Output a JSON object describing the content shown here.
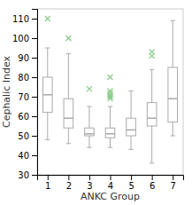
{
  "chart_data": {
    "type": "box",
    "xlabel": "ANKC Group",
    "ylabel": "Cephalic Index",
    "xlim": [
      0.5,
      7.5
    ],
    "ylim": [
      30,
      115
    ],
    "xticks": [
      1,
      2,
      3,
      4,
      5,
      6,
      7
    ],
    "yticks": [
      30,
      40,
      50,
      60,
      70,
      80,
      90,
      100,
      110
    ],
    "grid": false,
    "color": "#aaaaaa",
    "x": [
      1,
      2,
      3,
      4,
      5,
      6,
      7
    ],
    "q1": [
      62,
      54,
      50,
      49,
      50,
      55,
      57
    ],
    "median": [
      71,
      59,
      51,
      51,
      53,
      59,
      69
    ],
    "q3": [
      80,
      69,
      54,
      54,
      59,
      67,
      85
    ],
    "whislo": [
      48,
      46,
      44,
      44,
      43,
      36,
      50
    ],
    "whishi": [
      95,
      92,
      65,
      65,
      73,
      84,
      109
    ],
    "fliers": {
      "color": "#88cc88",
      "marker": "x",
      "values": [
        [
          110
        ],
        [
          100
        ],
        [
          74
        ],
        [
          69,
          70,
          71,
          72,
          73,
          80
        ],
        [],
        [
          91,
          93
        ],
        []
      ]
    }
  }
}
